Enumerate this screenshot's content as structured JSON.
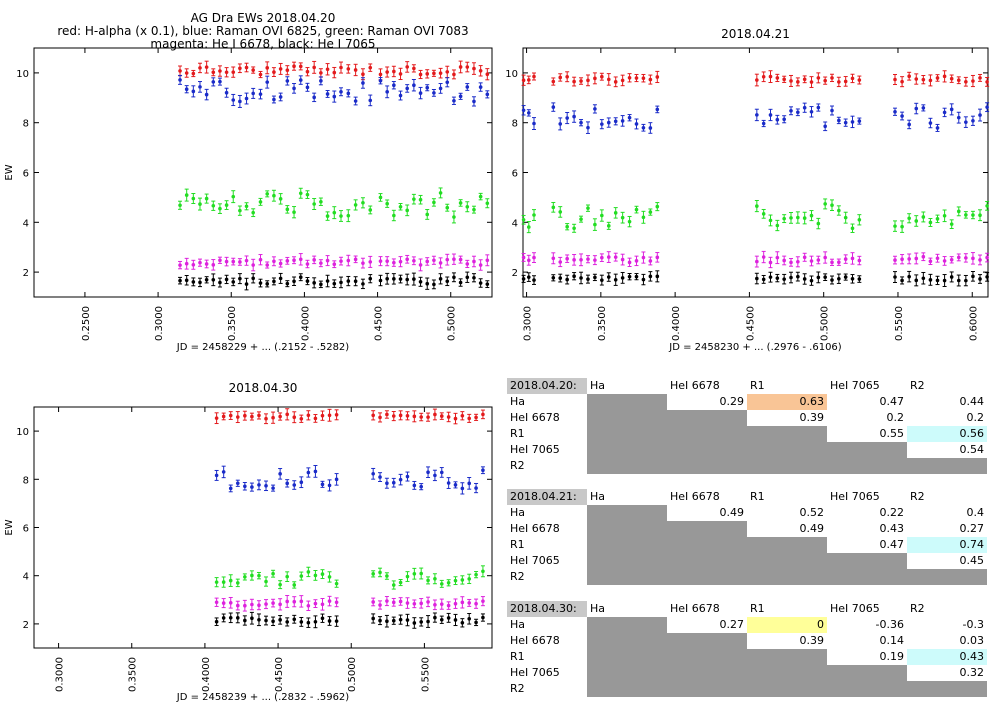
{
  "chart_data": [
    {
      "type": "scatter",
      "title": "AG Dra EWs 2018.04.20",
      "subtitle": [
        "red: H-alpha (x 0.1), blue: Raman OVI 6825, green: Raman OVI 7083",
        "magenta: He I 6678, black: He I 7065"
      ],
      "xlabel": "JD = 2458229 + ... (.2152 - .5282)",
      "ylabel": "EW",
      "xlim": [
        0.2152,
        0.5282
      ],
      "ylim": [
        1,
        11
      ],
      "xticks": [
        "0.2500",
        "0.3000",
        "0.3500",
        "0.4000",
        "0.4500",
        "0.5000"
      ],
      "yticks": [
        "2",
        "4",
        "6",
        "8",
        "10"
      ],
      "segments": [
        [
          0.315,
          0.365
        ],
        [
          0.37,
          0.425
        ],
        [
          0.43,
          0.445
        ],
        [
          0.452,
          0.525
        ]
      ],
      "series": [
        {
          "name": "H-alpha (x 0.1)",
          "color": "#e31a1c",
          "base": 10.1,
          "amp": 0.18
        },
        {
          "name": "Raman OVI 6825",
          "color": "#1a2bc8",
          "base": 9.3,
          "amp": 0.45
        },
        {
          "name": "Raman OVI 7083",
          "color": "#22dd22",
          "base": 4.7,
          "amp": 0.5
        },
        {
          "name": "He I 6678",
          "color": "#dd22dd",
          "base": 2.4,
          "amp": 0.12
        },
        {
          "name": "He I 7065",
          "color": "#000000",
          "base": 1.65,
          "amp": 0.15
        }
      ]
    },
    {
      "type": "scatter",
      "title": "2018.04.21",
      "xlabel": "JD = 2458230 + ... (.2976 - .6106)",
      "ylabel": "",
      "xlim": [
        0.2976,
        0.6106
      ],
      "ylim": [
        1,
        11
      ],
      "xticks": [
        "0.3000",
        "0.3500",
        "0.4000",
        "0.4500",
        "0.5000",
        "0.5500",
        "0.6000"
      ],
      "yticks": [
        "2",
        "4",
        "6",
        "8",
        "10"
      ],
      "segments": [
        [
          0.298,
          0.305
        ],
        [
          0.318,
          0.388
        ],
        [
          0.455,
          0.524
        ],
        [
          0.548,
          0.61
        ]
      ],
      "series": [
        {
          "name": "H-alpha (x 0.1)",
          "color": "#e31a1c",
          "base": 9.75,
          "amp": 0.12
        },
        {
          "name": "Raman OVI 6825",
          "color": "#1a2bc8",
          "base": 8.2,
          "amp": 0.45
        },
        {
          "name": "Raman OVI 7083",
          "color": "#22dd22",
          "base": 4.25,
          "amp": 0.5
        },
        {
          "name": "He I 6678",
          "color": "#dd22dd",
          "base": 2.5,
          "amp": 0.12
        },
        {
          "name": "He I 7065",
          "color": "#000000",
          "base": 1.75,
          "amp": 0.1
        }
      ]
    },
    {
      "type": "scatter",
      "title": "2018.04.30",
      "xlabel": "JD = 2458239 + ... (.2832 - .5962)",
      "ylabel": "EW",
      "xlim": [
        0.2832,
        0.5962
      ],
      "ylim": [
        1,
        11
      ],
      "xticks": [
        "0.3000",
        "0.3500",
        "0.4000",
        "0.4500",
        "0.5000",
        "0.5500"
      ],
      "yticks": [
        "2",
        "4",
        "6",
        "8",
        "10"
      ],
      "segments": [
        [
          0.408,
          0.49
        ],
        [
          0.515,
          0.59
        ]
      ],
      "series": [
        {
          "name": "H-alpha (x 0.1)",
          "color": "#e31a1c",
          "base": 10.6,
          "amp": 0.1
        },
        {
          "name": "Raman OVI 6825",
          "color": "#1a2bc8",
          "base": 8.0,
          "amp": 0.4
        },
        {
          "name": "Raman OVI 7083",
          "color": "#22dd22",
          "base": 3.9,
          "amp": 0.3
        },
        {
          "name": "He I 6678",
          "color": "#dd22dd",
          "base": 2.85,
          "amp": 0.1
        },
        {
          "name": "He I 7065",
          "color": "#000000",
          "base": 2.15,
          "amp": 0.12
        }
      ]
    }
  ],
  "correlation_tables": [
    {
      "date": "2018.04.20:",
      "columns": [
        "Ha",
        "HeI 6678",
        "R1",
        "HeI 7065",
        "R2"
      ],
      "rows": [
        {
          "label": "Ha",
          "values": [
            "0.29",
            "0.63",
            "0.47",
            "0.44"
          ],
          "highlight": {
            "1": "#f9c596"
          }
        },
        {
          "label": "HeI 6678",
          "values": [
            "0.39",
            "0.2",
            "0.2"
          ],
          "highlight": {}
        },
        {
          "label": "R1",
          "values": [
            "0.55",
            "0.56"
          ],
          "highlight": {
            "1": "#cdfbfb"
          }
        },
        {
          "label": "HeI 7065",
          "values": [
            "0.54"
          ],
          "highlight": {}
        },
        {
          "label": "R2",
          "values": [],
          "highlight": {}
        }
      ]
    },
    {
      "date": "2018.04.21:",
      "columns": [
        "Ha",
        "HeI 6678",
        "R1",
        "HeI 7065",
        "R2"
      ],
      "rows": [
        {
          "label": "Ha",
          "values": [
            "0.49",
            "0.52",
            "0.22",
            "0.4"
          ],
          "highlight": {}
        },
        {
          "label": "HeI 6678",
          "values": [
            "0.49",
            "0.43",
            "0.27"
          ],
          "highlight": {}
        },
        {
          "label": "R1",
          "values": [
            "0.47",
            "0.74"
          ],
          "highlight": {
            "1": "#cdfbfb"
          }
        },
        {
          "label": "HeI 7065",
          "values": [
            "0.45"
          ],
          "highlight": {}
        },
        {
          "label": "R2",
          "values": [],
          "highlight": {}
        }
      ]
    },
    {
      "date": "2018.04.30:",
      "columns": [
        "Ha",
        "HeI 6678",
        "R1",
        "HeI 7065",
        "R2"
      ],
      "rows": [
        {
          "label": "Ha",
          "values": [
            "0.27",
            "0",
            "-0.36",
            "-0.3"
          ],
          "highlight": {
            "1": "#ffff99"
          }
        },
        {
          "label": "HeI 6678",
          "values": [
            "0.39",
            "0.14",
            "0.03"
          ],
          "highlight": {}
        },
        {
          "label": "R1",
          "values": [
            "0.19",
            "0.43"
          ],
          "highlight": {
            "1": "#cdfbfb"
          }
        },
        {
          "label": "HeI 7065",
          "values": [
            "0.32"
          ],
          "highlight": {}
        },
        {
          "label": "R2",
          "values": [],
          "highlight": {}
        }
      ]
    }
  ]
}
